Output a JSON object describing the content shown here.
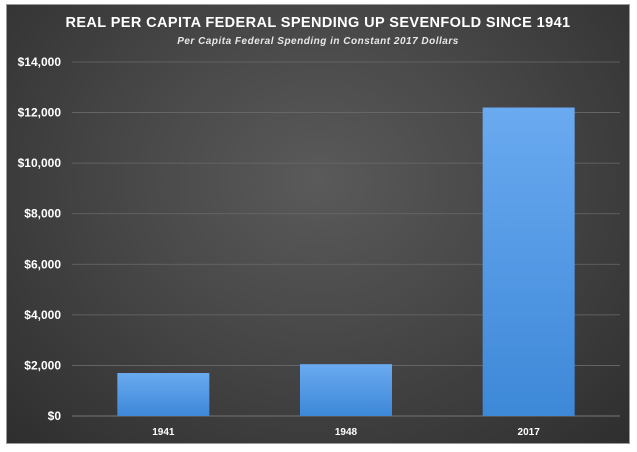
{
  "chart_data": {
    "type": "bar",
    "title": "REAL PER CAPITA FEDERAL SPENDING UP SEVENFOLD SINCE 1941",
    "subtitle": "Per Capita Federal Spending in Constant 2017 Dollars",
    "categories": [
      "1941",
      "1948",
      "2017"
    ],
    "values": [
      1700,
      2050,
      12200
    ],
    "xlabel": "",
    "ylabel": "",
    "ylim": [
      0,
      14000
    ],
    "yticks": [
      0,
      2000,
      4000,
      6000,
      8000,
      10000,
      12000,
      14000
    ],
    "ytick_labels": [
      "$0",
      "$2,000",
      "$4,000",
      "$6,000",
      "$8,000",
      "$10,000",
      "$12,000",
      "$14,000"
    ],
    "grid": true,
    "legend": "none",
    "colors": {
      "bar_top": "#6aaaf0",
      "bar_bottom": "#3d88d8",
      "grid": "#6a6a6a",
      "axis_text": "#ffffff"
    }
  }
}
